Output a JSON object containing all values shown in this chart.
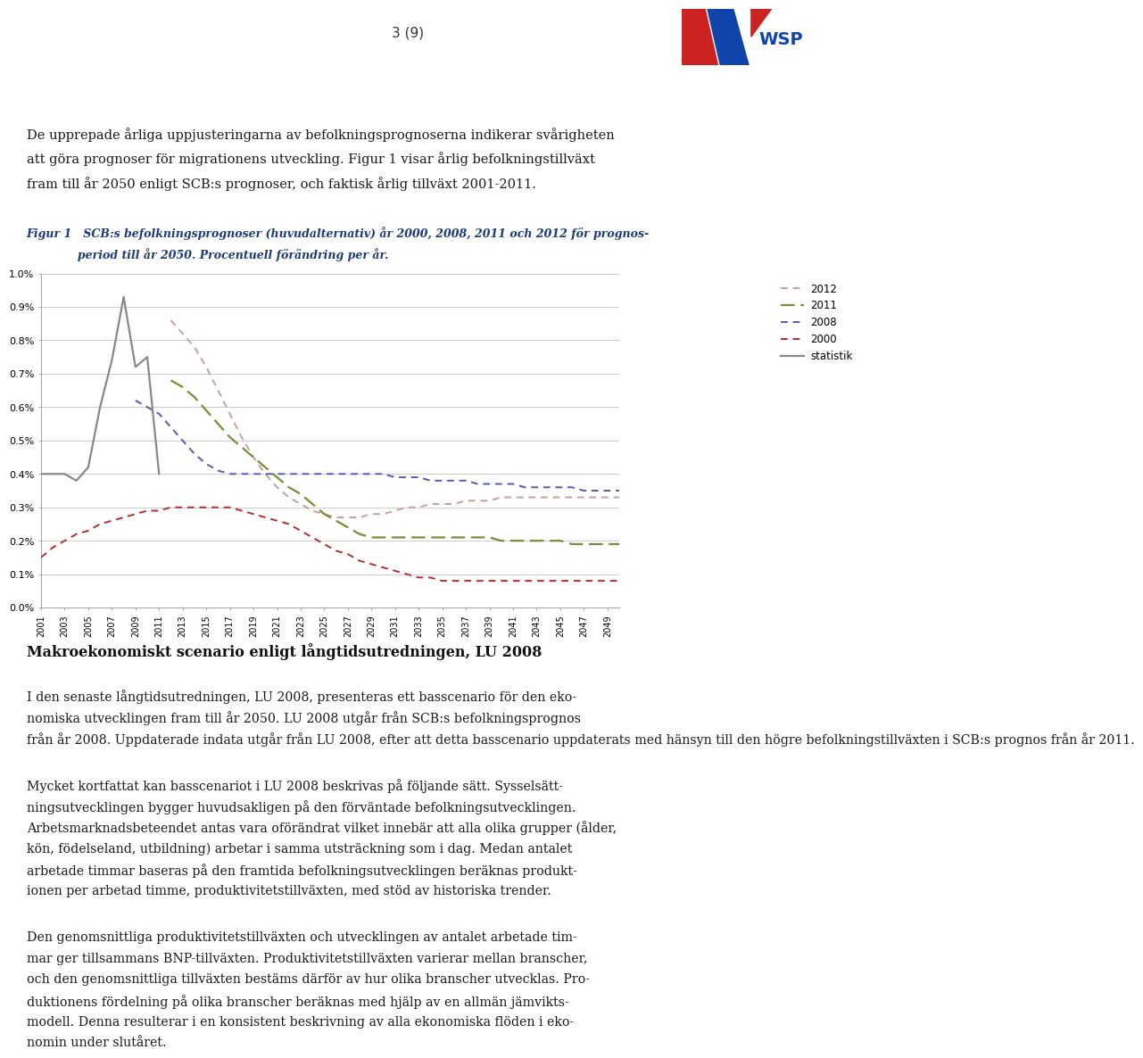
{
  "years_stat": [
    2001,
    2002,
    2003,
    2004,
    2005,
    2006,
    2007,
    2008,
    2009,
    2010,
    2011
  ],
  "stat": [
    0.004,
    0.004,
    0.004,
    0.0038,
    0.0042,
    0.006,
    0.0074,
    0.0093,
    0.0072,
    0.0075,
    0.004
  ],
  "years_2012": [
    2012,
    2013,
    2014,
    2015,
    2016,
    2017,
    2018,
    2019,
    2020,
    2021,
    2022,
    2023,
    2024,
    2025,
    2026,
    2027,
    2028,
    2029,
    2030,
    2031,
    2032,
    2033,
    2034,
    2035,
    2036,
    2037,
    2038,
    2039,
    2040,
    2041,
    2042,
    2043,
    2044,
    2045,
    2046,
    2047,
    2048,
    2049,
    2050
  ],
  "series_2012": [
    0.0086,
    0.0082,
    0.0078,
    0.0072,
    0.0065,
    0.0058,
    0.0051,
    0.0045,
    0.004,
    0.0036,
    0.0033,
    0.0031,
    0.0029,
    0.0028,
    0.0027,
    0.0027,
    0.0027,
    0.0028,
    0.0028,
    0.0029,
    0.003,
    0.003,
    0.0031,
    0.0031,
    0.0031,
    0.0032,
    0.0032,
    0.0032,
    0.0033,
    0.0033,
    0.0033,
    0.0033,
    0.0033,
    0.0033,
    0.0033,
    0.0033,
    0.0033,
    0.0033,
    0.0033
  ],
  "years_2011": [
    2012,
    2013,
    2014,
    2015,
    2016,
    2017,
    2018,
    2019,
    2020,
    2021,
    2022,
    2023,
    2024,
    2025,
    2026,
    2027,
    2028,
    2029,
    2030,
    2031,
    2032,
    2033,
    2034,
    2035,
    2036,
    2037,
    2038,
    2039,
    2040,
    2041,
    2042,
    2043,
    2044,
    2045,
    2046,
    2047,
    2048,
    2049,
    2050
  ],
  "series_2011": [
    0.0068,
    0.0066,
    0.0063,
    0.0059,
    0.0055,
    0.0051,
    0.0048,
    0.0045,
    0.0042,
    0.0039,
    0.0036,
    0.0034,
    0.0031,
    0.0028,
    0.0026,
    0.0024,
    0.0022,
    0.0021,
    0.0021,
    0.0021,
    0.0021,
    0.0021,
    0.0021,
    0.0021,
    0.0021,
    0.0021,
    0.0021,
    0.0021,
    0.002,
    0.002,
    0.002,
    0.002,
    0.002,
    0.002,
    0.0019,
    0.0019,
    0.0019,
    0.0019,
    0.0019
  ],
  "years_2008": [
    2009,
    2010,
    2011,
    2012,
    2013,
    2014,
    2015,
    2016,
    2017,
    2018,
    2019,
    2020,
    2021,
    2022,
    2023,
    2024,
    2025,
    2026,
    2027,
    2028,
    2029,
    2030,
    2031,
    2032,
    2033,
    2034,
    2035,
    2036,
    2037,
    2038,
    2039,
    2040,
    2041,
    2042,
    2043,
    2044,
    2045,
    2046,
    2047,
    2048,
    2049,
    2050
  ],
  "series_2008": [
    0.0062,
    0.006,
    0.0058,
    0.0054,
    0.005,
    0.0046,
    0.0043,
    0.0041,
    0.004,
    0.004,
    0.004,
    0.004,
    0.004,
    0.004,
    0.004,
    0.004,
    0.004,
    0.004,
    0.004,
    0.004,
    0.004,
    0.004,
    0.0039,
    0.0039,
    0.0039,
    0.0038,
    0.0038,
    0.0038,
    0.0038,
    0.0037,
    0.0037,
    0.0037,
    0.0037,
    0.0036,
    0.0036,
    0.0036,
    0.0036,
    0.0036,
    0.0035,
    0.0035,
    0.0035,
    0.0035
  ],
  "years_2000": [
    2001,
    2002,
    2003,
    2004,
    2005,
    2006,
    2007,
    2008,
    2009,
    2010,
    2011,
    2012,
    2013,
    2014,
    2015,
    2016,
    2017,
    2018,
    2019,
    2020,
    2021,
    2022,
    2023,
    2024,
    2025,
    2026,
    2027,
    2028,
    2029,
    2030,
    2031,
    2032,
    2033,
    2034,
    2035,
    2036,
    2037,
    2038,
    2039,
    2040,
    2041,
    2042,
    2043,
    2044,
    2045,
    2046,
    2047,
    2048,
    2049,
    2050
  ],
  "series_2000": [
    0.0015,
    0.0018,
    0.002,
    0.0022,
    0.0023,
    0.0025,
    0.0026,
    0.0027,
    0.0028,
    0.0029,
    0.0029,
    0.003,
    0.003,
    0.003,
    0.003,
    0.003,
    0.003,
    0.0029,
    0.0028,
    0.0027,
    0.0026,
    0.0025,
    0.0023,
    0.0021,
    0.0019,
    0.0017,
    0.0016,
    0.0014,
    0.0013,
    0.0012,
    0.0011,
    0.001,
    0.0009,
    0.0009,
    0.0008,
    0.0008,
    0.0008,
    0.0008,
    0.0008,
    0.0008,
    0.0008,
    0.0008,
    0.0008,
    0.0008,
    0.0008,
    0.0008,
    0.0008,
    0.0008,
    0.0008,
    0.0008
  ],
  "color_2012": "#c4a0a0",
  "color_2011": "#7a8c3a",
  "color_2008": "#5858b0",
  "color_2000": "#b03030",
  "color_stat": "#888888",
  "ylim_lo": 0.0,
  "ylim_hi": 0.01,
  "yticks": [
    0.0,
    0.001,
    0.002,
    0.003,
    0.004,
    0.005,
    0.006,
    0.007,
    0.008,
    0.009,
    0.01
  ],
  "ytick_labels": [
    "0.0%",
    "0.1%",
    "0.2%",
    "0.3%",
    "0.4%",
    "0.5%",
    "0.6%",
    "0.7%",
    "0.8%",
    "0.9%",
    "1.0%"
  ],
  "xtick_years": [
    2001,
    2003,
    2005,
    2007,
    2009,
    2011,
    2013,
    2015,
    2017,
    2019,
    2021,
    2023,
    2025,
    2027,
    2029,
    2031,
    2033,
    2035,
    2037,
    2039,
    2041,
    2043,
    2045,
    2047,
    2049
  ],
  "fig_bg": "#ffffff",
  "grid_color": "#cccccc",
  "page_title": "3 (9)",
  "body_text": "De upprepade årliga uppjusteringarna av befolkningsprognoserna indikerar svårigheten\natt göra prognoser för migrationens utveckling. Figur 1 visar årlig befolkningstillväxt\nfram till år 2050 enligt SCB:s prognoser, och faktisk årlig tillväxt 2001-2011.",
  "caption_line1": "Figur 1   SCB:s befolkningsprognoser (huvudalternativ) år 2000, 2008, 2011 och 2012 för prognos-",
  "caption_line2": "             period till år 2050. Procentuell förändring per år.",
  "heading2": "Makroekonomiskt scenario enligt långtidsutredningen, LU 2008",
  "para1_line1": "I den senaste långtidsutredningen, LU 2008, presenteras ett basscenario för den eko-",
  "para1_line2": "nomiska utvecklingen fram till år 2050. LU 2008 utgår från SCB:s befolkningsprognos",
  "para1_line3": "från år 2008. Uppdaterade indata utgår från LU 2008, efter att detta basscenario uppdaterats med hänsyn till den högre befolkningstillväxten i SCB:s prognos från år 2011.",
  "para2_line1": "Mycket kortfattat kan basscenariot i LU 2008 beskrivas på följande sätt. Sysselsätt-",
  "para2_line2": "ningsutvecklingen bygger huvudsakligen på den förväntade befolkningsutvecklingen.",
  "para2_line3": "Arbetsmarknadsbeteendet antas vara oförändrat vilket innebär att alla olika grupper (ålder,",
  "para2_line4": "kön, födelseland, utbildning) arbetar i samma utsträckning som i dag. Medan antalet",
  "para2_line5": "arbetade timmar baseras på den framtida befolkningsutvecklingen beräknas produkt-",
  "para2_line6": "ionen per arbetad timme, produktivitetstillväxten, med stöd av historiska trender.",
  "para3_line1": "Den genomsnittliga produktivitetstillväxten och utvecklingen av antalet arbetade tim-",
  "para3_line2": "mar ger tillsammans BNP-tillväxten. Produktivitetstillväxten varierar mellan branscher,",
  "para3_line3": "och den genomsnittliga tillväxten bestäms därför av hur olika branscher utvecklas. Pro-",
  "para3_line4": "duktionens fördelning på olika branscher beräknas med hjälp av en allmän jämvikts-",
  "para3_line5": "modell. Denna resulterar i en konsistent beskrivning av alla ekonomiska flöden i eko-",
  "para3_line6": "nomin under slutåret."
}
